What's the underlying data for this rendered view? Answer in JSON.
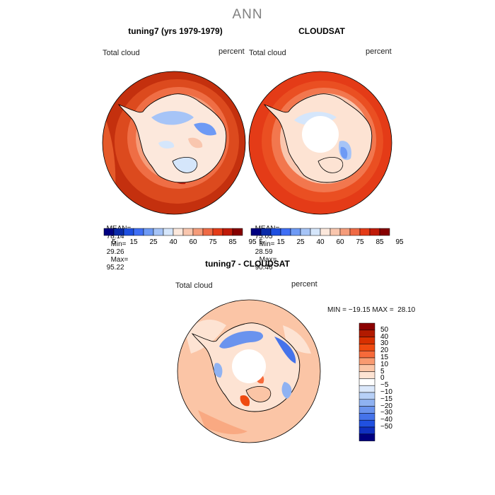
{
  "title": "ANN",
  "panels": [
    {
      "title": "tuning7 (yrs 1979-1979)",
      "variable": "Total cloud",
      "units": "percent",
      "mean_label": "MEAN=",
      "mean": "78.14",
      "min_label": "Min=",
      "min": "29.26",
      "max_label": "Max=",
      "max": "95.22"
    },
    {
      "title": "CLOUDSAT",
      "variable": "Total cloud",
      "units": "percent",
      "mean_label": "MEAN=",
      "mean": "75.05",
      "min_label": "Min=",
      "min": "28.59",
      "max_label": "Max=",
      "max": "90.46"
    }
  ],
  "top_colorbar": {
    "colors": [
      "#000080",
      "#0a2aa8",
      "#1e4fe0",
      "#3f6ff5",
      "#6e9af5",
      "#a6c4f7",
      "#d5e6fb",
      "#fce8dc",
      "#f9c6ae",
      "#f59c7a",
      "#ef6a45",
      "#e43b17",
      "#c01a08",
      "#860000"
    ],
    "labels": [
      "5",
      "15",
      "25",
      "40",
      "60",
      "75",
      "85",
      "95"
    ]
  },
  "difference": {
    "title": "tuning7 - CLOUDSAT",
    "variable": "Total cloud",
    "units": "percent",
    "minmax_text": "MIN = −19.15 MAX =  28.10",
    "colorbar_colors": [
      "#8b0000",
      "#b21a00",
      "#d83000",
      "#ef4a10",
      "#f76a3a",
      "#f99a70",
      "#fbc5a6",
      "#fde3d3",
      "#ffffff",
      "#dbe8fb",
      "#b7d0f7",
      "#8fb2f2",
      "#6a93ee",
      "#4573ea",
      "#2050e0",
      "#1030c0",
      "#000080"
    ],
    "colorbar_labels": [
      "50",
      "40",
      "30",
      "20",
      "15",
      "10",
      "5",
      "0",
      "−5",
      "−10",
      "−15",
      "−20",
      "−30",
      "−40",
      "−50"
    ]
  }
}
